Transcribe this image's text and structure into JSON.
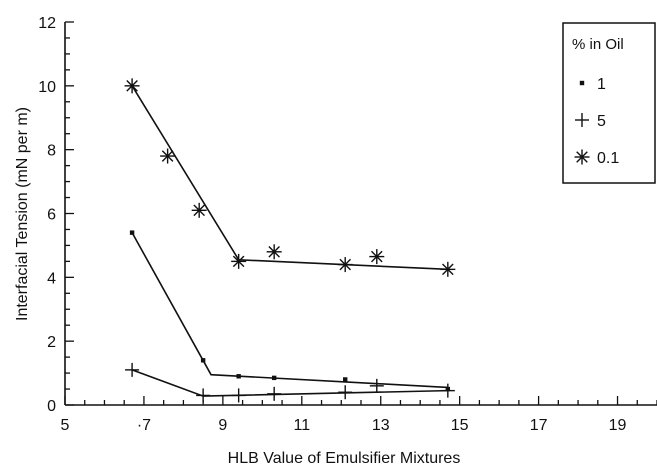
{
  "chart_data": {
    "type": "line",
    "title": "",
    "xlabel": "HLB Value of Emulsifier Mixtures",
    "ylabel": "Interfacial Tension (mN per m)",
    "xlim": [
      5,
      20
    ],
    "ylim": [
      0,
      12
    ],
    "x_tick_labels": [
      "5",
      "·7",
      "9",
      "11",
      "13",
      "15",
      "17",
      "19"
    ],
    "x_tick_values": [
      5,
      7,
      9,
      11,
      13,
      15,
      17,
      19
    ],
    "y_tick_labels": [
      "0",
      "2",
      "4",
      "6",
      "8",
      "10",
      "12"
    ],
    "y_tick_values": [
      0,
      2,
      4,
      6,
      8,
      10,
      12
    ],
    "grid": false,
    "legend": {
      "title": "% in Oil",
      "placement": "top-right"
    },
    "series": [
      {
        "name": "1",
        "marker": "dot",
        "points": [
          {
            "x": 6.7,
            "y": 5.4
          },
          {
            "x": 8.5,
            "y": 1.4
          },
          {
            "x": 9.4,
            "y": 0.9
          },
          {
            "x": 10.3,
            "y": 0.85
          },
          {
            "x": 12.1,
            "y": 0.8
          },
          {
            "x": 14.7,
            "y": 0.5
          }
        ],
        "fit": [
          {
            "x": 6.7,
            "y": 5.4
          },
          {
            "x": 8.7,
            "y": 0.95
          },
          {
            "x": 14.7,
            "y": 0.55
          }
        ]
      },
      {
        "name": "5",
        "marker": "plus",
        "points": [
          {
            "x": 6.7,
            "y": 1.1
          },
          {
            "x": 8.5,
            "y": 0.3
          },
          {
            "x": 9.4,
            "y": 0.3
          },
          {
            "x": 10.3,
            "y": 0.35
          },
          {
            "x": 12.1,
            "y": 0.4
          },
          {
            "x": 12.9,
            "y": 0.6
          },
          {
            "x": 14.7,
            "y": 0.45
          }
        ],
        "fit": [
          {
            "x": 6.7,
            "y": 1.1
          },
          {
            "x": 8.5,
            "y": 0.28
          },
          {
            "x": 14.7,
            "y": 0.45
          }
        ]
      },
      {
        "name": "0.1",
        "marker": "asterisk",
        "points": [
          {
            "x": 6.7,
            "y": 10.0
          },
          {
            "x": 7.6,
            "y": 7.8
          },
          {
            "x": 8.4,
            "y": 6.1
          },
          {
            "x": 9.4,
            "y": 4.5
          },
          {
            "x": 10.3,
            "y": 4.8
          },
          {
            "x": 12.1,
            "y": 4.4
          },
          {
            "x": 12.9,
            "y": 4.65
          },
          {
            "x": 14.7,
            "y": 4.25
          }
        ],
        "fit": [
          {
            "x": 6.7,
            "y": 10.0
          },
          {
            "x": 9.4,
            "y": 4.55
          },
          {
            "x": 14.7,
            "y": 4.25
          }
        ]
      }
    ]
  }
}
